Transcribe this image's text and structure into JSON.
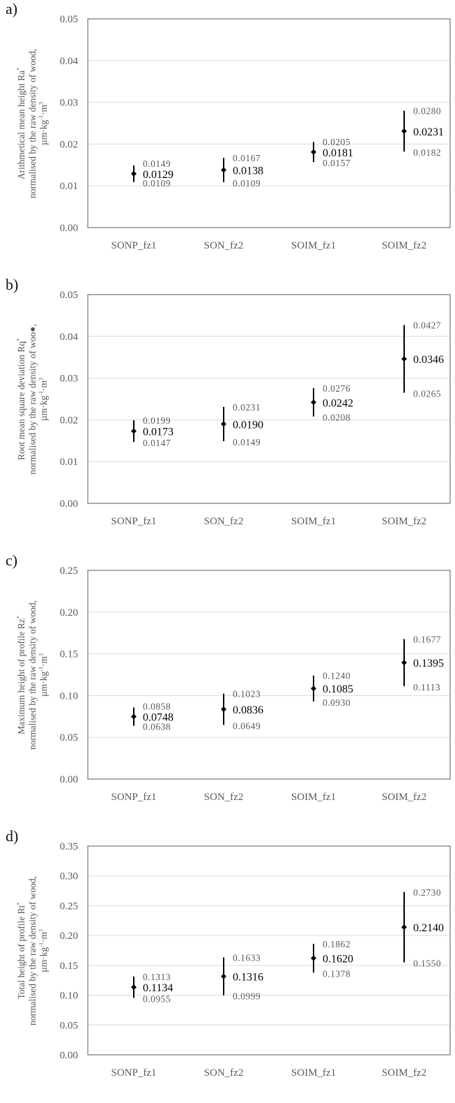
{
  "colors": {
    "text": "#595959",
    "value": "#000000",
    "axis": "#595959",
    "grid": "#d9d9d9",
    "marker": "#000000"
  },
  "chart_data": [
    {
      "type": "scatter",
      "panel_label": "a)",
      "ylabel_lines": [
        "Arithmetical mean height Ra*",
        "normalised by the raw density of wood,",
        "µm·kg-1·m3"
      ],
      "categories": [
        "SONP_fz1",
        "SON_fz2",
        "SOIM_fz1",
        "SOIM_fz2"
      ],
      "values": [
        0.0129,
        0.0138,
        0.0181,
        0.0231
      ],
      "upper": [
        0.0149,
        0.0167,
        0.0205,
        0.028
      ],
      "lower": [
        0.0109,
        0.0109,
        0.0157,
        0.0182
      ],
      "value_labels": [
        "0.0129",
        "0.0138",
        "0.0181",
        "0.0231"
      ],
      "upper_labels": [
        "0.0149",
        "0.0167",
        "0.0205",
        "0.0280"
      ],
      "lower_labels": [
        "0.0109",
        "0.0109",
        "0.0157",
        "0.0182"
      ],
      "yticks": [
        "0.00",
        "0.01",
        "0.02",
        "0.03",
        "0.04",
        "0.05"
      ],
      "ylim": [
        0,
        0.05
      ],
      "grid": true
    },
    {
      "type": "scatter",
      "panel_label": "b)",
      "ylabel_lines": [
        "Root mean square deviation Rq*",
        "normalised by the raw density of woo●,",
        "µm·kg-1·m3"
      ],
      "categories": [
        "SONP_fz1",
        "SON_fz2",
        "SOIM_fz1",
        "SOIM_fz2"
      ],
      "values": [
        0.0173,
        0.019,
        0.0242,
        0.0346
      ],
      "upper": [
        0.0199,
        0.0231,
        0.0276,
        0.0427
      ],
      "lower": [
        0.0147,
        0.0149,
        0.0208,
        0.0265
      ],
      "value_labels": [
        "0.0173",
        "0.0190",
        "0.0242",
        "0.0346"
      ],
      "upper_labels": [
        "0.0199",
        "0.0231",
        "0.0276",
        "0.0427"
      ],
      "lower_labels": [
        "0.0147",
        "0.0149",
        "0.0208",
        "0.0265"
      ],
      "yticks": [
        "0.00",
        "0.01",
        "0.02",
        "0.03",
        "0.04",
        "0.05"
      ],
      "ylim": [
        0,
        0.05
      ],
      "grid": true
    },
    {
      "type": "scatter",
      "panel_label": "c)",
      "ylabel_lines": [
        "Maximum height of profile Rz*",
        "normalised by the raw density of wood,",
        "µm·kg-1·m3"
      ],
      "categories": [
        "SONP_fz1",
        "SON_fz2",
        "SOIM_fz1",
        "SOIM_fz2"
      ],
      "values": [
        0.0748,
        0.0836,
        0.1085,
        0.1395
      ],
      "upper": [
        0.0858,
        0.1023,
        0.124,
        0.1677
      ],
      "lower": [
        0.0638,
        0.0649,
        0.093,
        0.1113
      ],
      "value_labels": [
        "0.0748",
        "0.0836",
        "0.1085",
        "0.1395"
      ],
      "upper_labels": [
        "0.0858",
        "0.1023",
        "0.1240",
        "0.1677"
      ],
      "lower_labels": [
        "0.0638",
        "0.0649",
        "0.0930",
        "0.1113"
      ],
      "yticks": [
        "0.00",
        "0.05",
        "0.10",
        "0.15",
        "0.20",
        "0.25"
      ],
      "ylim": [
        0,
        0.25
      ],
      "grid": true
    },
    {
      "type": "scatter",
      "panel_label": "d)",
      "ylabel_lines": [
        "Total height of profile Rt*",
        "normalised by the raw density of wood,",
        "µm·kg-1·m3"
      ],
      "categories": [
        "SONP_fz1",
        "SON_fz2",
        "SOIM_fz1",
        "SOIM_fz2"
      ],
      "values": [
        0.1134,
        0.1316,
        0.162,
        0.214
      ],
      "upper": [
        0.1313,
        0.1633,
        0.1862,
        0.273
      ],
      "lower": [
        0.0955,
        0.0999,
        0.1378,
        0.155
      ],
      "value_labels": [
        "0.1134",
        "0.1316",
        "0.1620",
        "0.2140"
      ],
      "upper_labels": [
        "0.1313",
        "0.1633",
        "0.1862",
        "0.2730"
      ],
      "lower_labels": [
        "0.0955",
        "0.0999",
        "0.1378",
        "0.1550"
      ],
      "yticks": [
        "0.00",
        "0.05",
        "0.10",
        "0.15",
        "0.20",
        "0.25",
        "0.30",
        "0.35"
      ],
      "ylim": [
        0,
        0.35
      ],
      "grid": true
    }
  ]
}
